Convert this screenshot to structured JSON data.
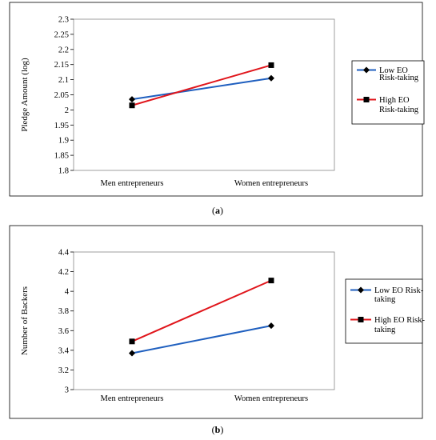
{
  "chart_data": [
    {
      "type": "line",
      "panel_label": "a",
      "categories": [
        "Men entrepreneurs",
        "Women entrepreneurs"
      ],
      "ylabel": "Pledge Amount (log)",
      "ylim": [
        1.8,
        2.3
      ],
      "yticks": [
        "1.8",
        "1.85",
        "1.9",
        "1.95",
        "2",
        "2.05",
        "2.1",
        "2.15",
        "2.2",
        "2.25",
        "2.3"
      ],
      "grid": false,
      "legend_position": "right",
      "series": [
        {
          "name": "Low EO Risk-taking",
          "legend_lines": [
            "Low EO",
            "Risk-taking"
          ],
          "values": [
            2.035,
            2.105
          ],
          "color": "#1f5fbf",
          "marker": "diamond"
        },
        {
          "name": "High EO Risk-taking",
          "legend_lines": [
            "High EO",
            "Risk-taking"
          ],
          "values": [
            2.015,
            2.148
          ],
          "color": "#e0151b",
          "marker": "square"
        }
      ]
    },
    {
      "type": "line",
      "panel_label": "b",
      "categories": [
        "Men entrepreneurs",
        "Women entrepreneurs"
      ],
      "ylabel": "Number of Backers",
      "ylim": [
        3,
        4.4
      ],
      "yticks": [
        "3",
        "3.2",
        "3.4",
        "3.6",
        "3.8",
        "4",
        "4.2",
        "4.4"
      ],
      "grid": false,
      "legend_position": "right",
      "series": [
        {
          "name": "Low EO Risk-taking",
          "legend_lines": [
            "Low EO Risk-",
            "taking"
          ],
          "values": [
            3.37,
            3.65
          ],
          "color": "#1f5fbf",
          "marker": "diamond"
        },
        {
          "name": "High EO Risk-taking",
          "legend_lines": [
            "High EO Risk-",
            "taking"
          ],
          "values": [
            3.49,
            4.11
          ],
          "color": "#e0151b",
          "marker": "square"
        }
      ]
    }
  ]
}
